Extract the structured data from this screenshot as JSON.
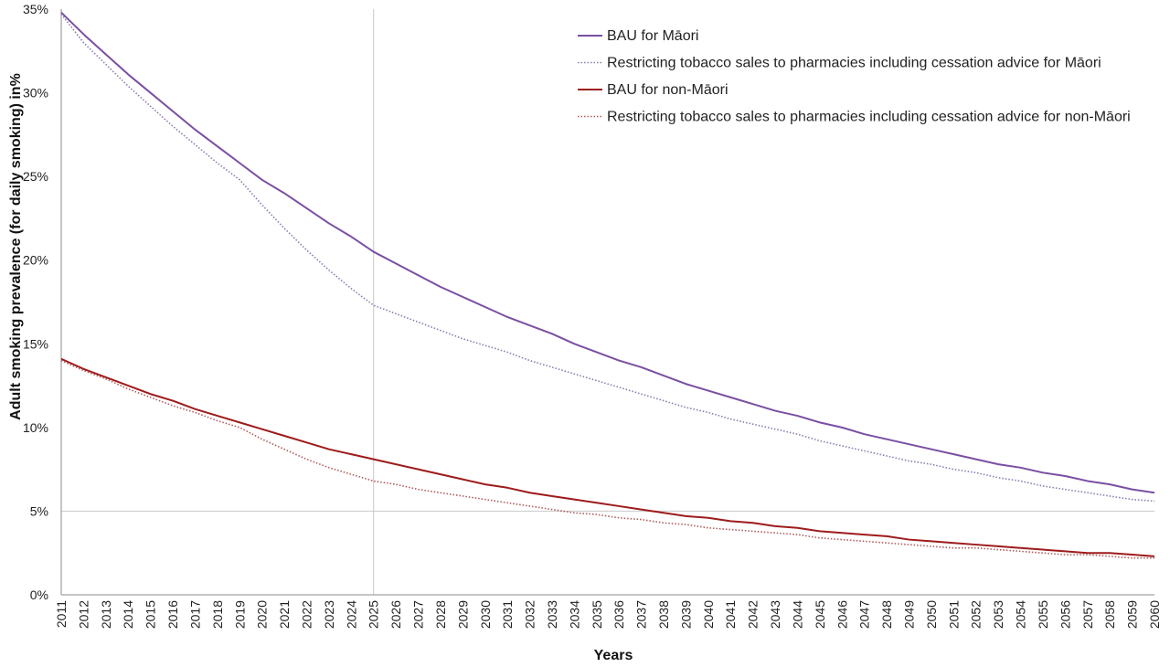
{
  "chart_data": {
    "type": "line",
    "title": "",
    "xlabel": "Years",
    "ylabel": "Adult smoking prevalence (for daily smoking) in%",
    "ylim": [
      0,
      35
    ],
    "yticks": [
      0,
      5,
      10,
      15,
      20,
      25,
      30,
      35
    ],
    "ytick_labels": [
      "0%",
      "5%",
      "10%",
      "15%",
      "20%",
      "25%",
      "30%",
      "35%"
    ],
    "x": [
      2011,
      2012,
      2013,
      2014,
      2015,
      2016,
      2017,
      2018,
      2019,
      2020,
      2021,
      2022,
      2023,
      2024,
      2025,
      2026,
      2027,
      2028,
      2029,
      2030,
      2031,
      2032,
      2033,
      2034,
      2035,
      2036,
      2037,
      2038,
      2039,
      2040,
      2041,
      2042,
      2043,
      2044,
      2045,
      2046,
      2047,
      2048,
      2049,
      2050,
      2051,
      2052,
      2053,
      2054,
      2055,
      2056,
      2057,
      2058,
      2059,
      2060
    ],
    "gridlines": {
      "y": [
        5
      ],
      "x": [
        2025
      ]
    },
    "legend_position": "top-right",
    "series": [
      {
        "name": "BAU for Māori",
        "color": "#7a4fa3",
        "style": "solid",
        "values": [
          34.8,
          33.5,
          32.3,
          31.1,
          30.0,
          28.9,
          27.8,
          26.8,
          25.8,
          24.8,
          24.0,
          23.1,
          22.2,
          21.4,
          20.5,
          19.8,
          19.1,
          18.4,
          17.8,
          17.2,
          16.6,
          16.1,
          15.6,
          15.0,
          14.5,
          14.0,
          13.6,
          13.1,
          12.6,
          12.2,
          11.8,
          11.4,
          11.0,
          10.7,
          10.3,
          10.0,
          9.6,
          9.3,
          9.0,
          8.7,
          8.4,
          8.1,
          7.8,
          7.6,
          7.3,
          7.1,
          6.8,
          6.6,
          6.3,
          6.1
        ]
      },
      {
        "name": "Restricting tobacco sales to pharmacies including cessation advice for Māori",
        "color": "#8a7bb0",
        "style": "dotted",
        "values": [
          34.7,
          33.0,
          31.7,
          30.4,
          29.2,
          28.0,
          26.9,
          25.8,
          24.8,
          23.3,
          21.9,
          20.6,
          19.4,
          18.3,
          17.3,
          16.8,
          16.3,
          15.8,
          15.3,
          14.9,
          14.5,
          14.0,
          13.6,
          13.2,
          12.8,
          12.4,
          12.0,
          11.6,
          11.2,
          10.9,
          10.5,
          10.2,
          9.9,
          9.6,
          9.2,
          8.9,
          8.6,
          8.3,
          8.0,
          7.8,
          7.5,
          7.3,
          7.0,
          6.8,
          6.5,
          6.3,
          6.1,
          5.9,
          5.7,
          5.6
        ]
      },
      {
        "name": "BAU for non-Māori",
        "color": "#9e1b1b",
        "style": "solid",
        "values": [
          14.1,
          13.5,
          13.0,
          12.5,
          12.0,
          11.6,
          11.1,
          10.7,
          10.3,
          9.9,
          9.5,
          9.1,
          8.7,
          8.4,
          8.1,
          7.8,
          7.5,
          7.2,
          6.9,
          6.6,
          6.4,
          6.1,
          5.9,
          5.7,
          5.5,
          5.3,
          5.1,
          4.9,
          4.7,
          4.6,
          4.4,
          4.3,
          4.1,
          4.0,
          3.8,
          3.7,
          3.6,
          3.5,
          3.3,
          3.2,
          3.1,
          3.0,
          2.9,
          2.8,
          2.7,
          2.6,
          2.5,
          2.5,
          2.4,
          2.3
        ]
      },
      {
        "name": "Restricting tobacco sales to pharmacies including cessation advice for non-Māori",
        "color": "#b05a5a",
        "style": "dotted",
        "values": [
          14.0,
          13.4,
          12.9,
          12.3,
          11.8,
          11.3,
          10.9,
          10.4,
          10.0,
          9.3,
          8.7,
          8.1,
          7.6,
          7.2,
          6.8,
          6.6,
          6.3,
          6.1,
          5.9,
          5.7,
          5.5,
          5.3,
          5.1,
          4.9,
          4.8,
          4.6,
          4.5,
          4.3,
          4.2,
          4.0,
          3.9,
          3.8,
          3.7,
          3.6,
          3.4,
          3.3,
          3.2,
          3.1,
          3.0,
          2.9,
          2.8,
          2.8,
          2.7,
          2.6,
          2.5,
          2.4,
          2.4,
          2.3,
          2.2,
          2.2
        ]
      }
    ]
  }
}
